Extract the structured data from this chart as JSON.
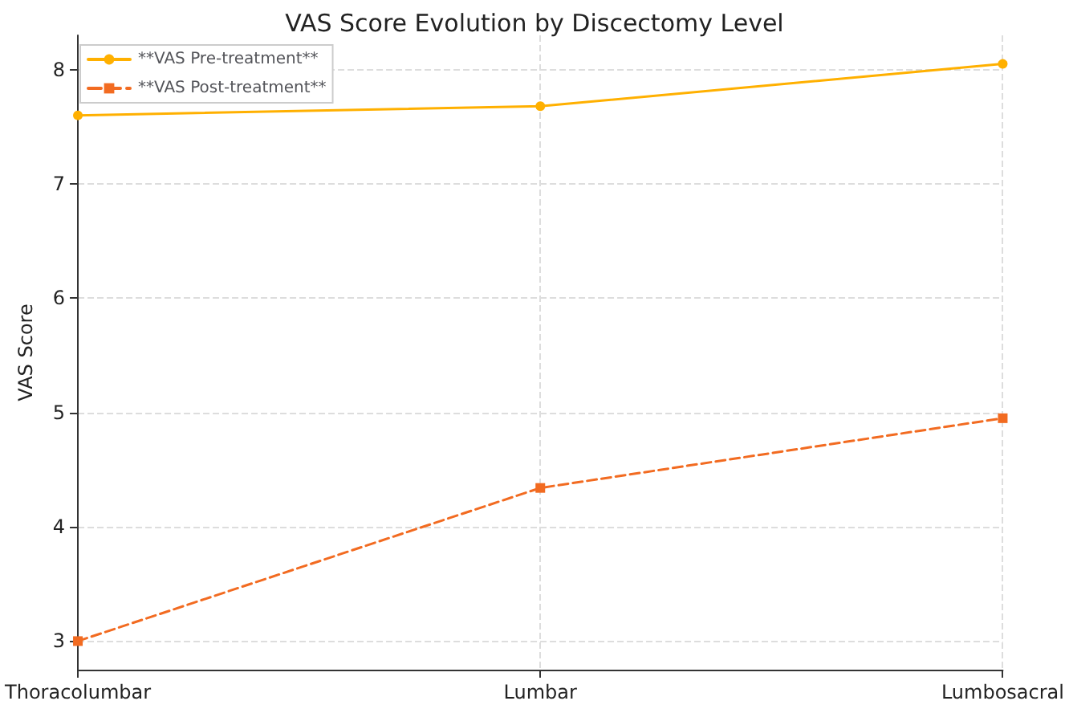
{
  "chart_data": {
    "type": "line",
    "title": "VAS Score Evolution by Discectomy Level",
    "ylabel": "VAS Score",
    "categories": [
      "Thoracolumbar",
      "Lumbar",
      "Lumbosacral"
    ],
    "series": [
      {
        "name": "**VAS Pre-treatment**",
        "color": "#ffb000",
        "values": [
          7.6,
          7.68,
          8.05
        ],
        "marker": "circle",
        "line_style": "solid"
      },
      {
        "name": "**VAS Post-treatment**",
        "color": "#f26b21",
        "values": [
          3.0,
          4.34,
          4.95
        ],
        "marker": "square",
        "line_style": "dashed"
      }
    ],
    "ylim": [
      2.75,
      8.3
    ],
    "yticks": [
      3,
      4,
      5,
      6,
      7,
      8
    ],
    "grid": true,
    "legend": "top left"
  }
}
